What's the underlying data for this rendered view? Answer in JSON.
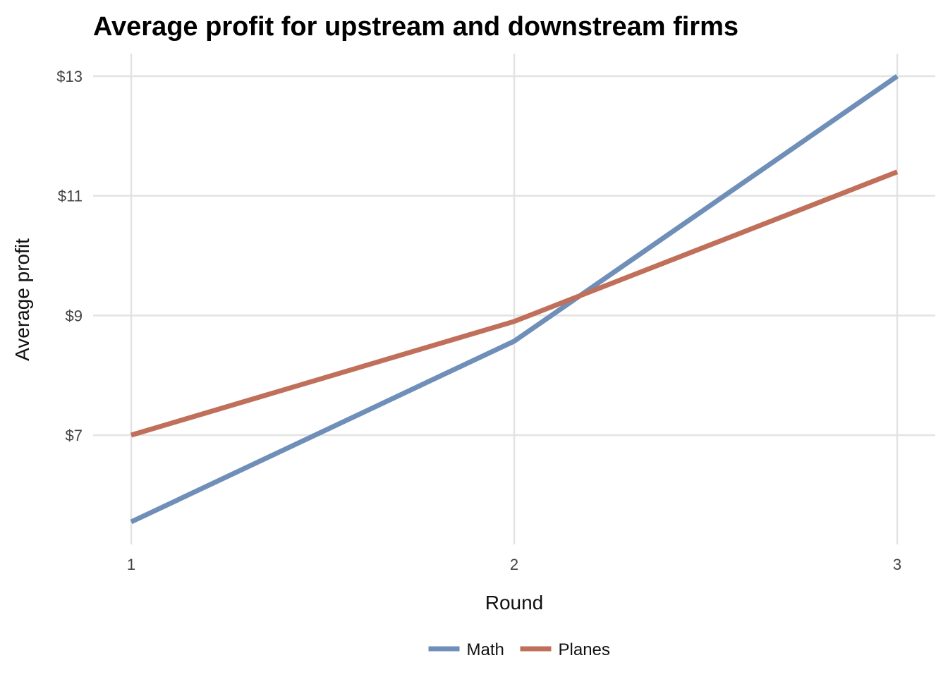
{
  "chart_data": {
    "type": "line",
    "title": "Average profit for upstream and downstream firms",
    "xlabel": "Round",
    "ylabel": "Average profit",
    "x": [
      1,
      2,
      3
    ],
    "x_tick_labels": [
      "1",
      "2",
      "3"
    ],
    "y_ticks": [
      7,
      9,
      11,
      13
    ],
    "y_tick_labels": [
      "$7",
      "$9",
      "$11",
      "$13"
    ],
    "ylim": [
      5.2,
      13.4
    ],
    "xlim": [
      0.9,
      3.1
    ],
    "grid": true,
    "legend_position": "bottom",
    "series": [
      {
        "name": "Math",
        "values": [
          5.55,
          8.57,
          13.0
        ],
        "color": "#6f8fb8"
      },
      {
        "name": "Planes",
        "values": [
          7.0,
          8.9,
          11.4
        ],
        "color": "#c0705a"
      }
    ]
  }
}
